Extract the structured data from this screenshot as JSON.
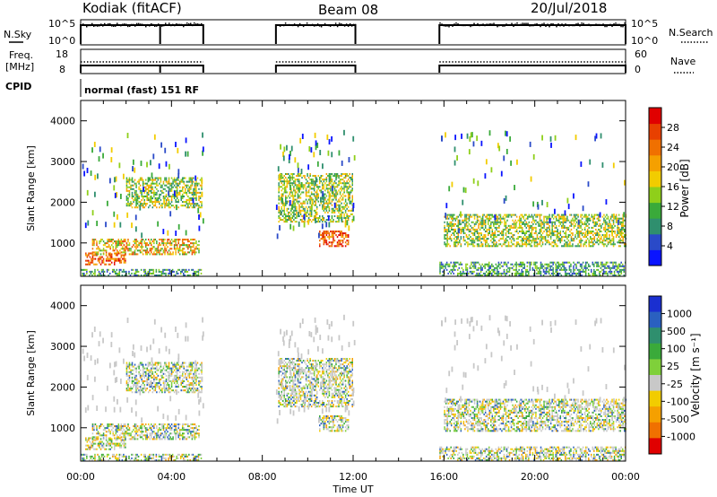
{
  "header": {
    "station": "Kodiak (fitACF)",
    "beam": "Beam 08",
    "date": "20/Jul/2018"
  },
  "info_panel": {
    "nsky_label": "N.Sky",
    "nsearch_label": "N.Search",
    "freq_label_1": "Freq.",
    "freq_label_2": "[MHz]",
    "nave_label": "Nave",
    "cpid_label": "CPID",
    "cpid_value": "normal (fast) 151 RF",
    "nsky_ticks": [
      "10^5",
      "10^0"
    ],
    "nsearch_ticks": [
      "10^5",
      "10^0"
    ],
    "freq_ticks": [
      "18",
      "8"
    ],
    "nave_ticks": [
      "60",
      "0"
    ]
  },
  "x_axis": {
    "label": "Time UT",
    "ticks": [
      "00:00",
      "04:00",
      "08:00",
      "12:00",
      "16:00",
      "20:00",
      "00:00"
    ],
    "range_hours": [
      0,
      24
    ]
  },
  "chart_data": [
    {
      "type": "heatmap",
      "title": "Power",
      "ylabel": "Slant Range [km]",
      "colorbar_label": "Power [dB]",
      "colorbar_ticks": [
        "4",
        "8",
        "12",
        "16",
        "20",
        "24",
        "28"
      ],
      "colorbar_colors": [
        "#0a14ff",
        "#2a4ac8",
        "#2f8f6e",
        "#3aaa3a",
        "#8fcf1a",
        "#f2cc00",
        "#f5a000",
        "#f07000",
        "#e84000",
        "#e00000"
      ],
      "ylim": [
        180,
        4500
      ],
      "yticks": [
        1000,
        2000,
        3000,
        4000
      ],
      "xlim": [
        0,
        24
      ],
      "data_periods_hours": [
        [
          0,
          5.4
        ],
        [
          8.6,
          12.1
        ],
        [
          15.8,
          24
        ]
      ],
      "features": [
        {
          "t0": 0.0,
          "t1": 5.3,
          "r0": 180,
          "r1": 350,
          "level": "low-mid"
        },
        {
          "t0": 0.2,
          "t1": 2.0,
          "r0": 450,
          "r1": 750,
          "level": "high"
        },
        {
          "t0": 0.5,
          "t1": 5.2,
          "r0": 700,
          "r1": 1100,
          "level": "mid-high"
        },
        {
          "t0": 2.0,
          "t1": 5.3,
          "r0": 1850,
          "r1": 2600,
          "level": "mid"
        },
        {
          "t0": 8.7,
          "t1": 12.0,
          "r0": 1500,
          "r1": 2700,
          "level": "mid"
        },
        {
          "t0": 10.5,
          "t1": 11.8,
          "r0": 900,
          "r1": 1300,
          "level": "high"
        },
        {
          "t0": 15.8,
          "t1": 24.0,
          "r0": 180,
          "r1": 500,
          "level": "low-mid"
        },
        {
          "t0": 16.0,
          "t1": 24.0,
          "r0": 900,
          "r1": 1700,
          "level": "mid"
        }
      ]
    },
    {
      "type": "heatmap",
      "title": "Velocity",
      "ylabel": "Slant Range [km]",
      "colorbar_label": "Velocity [m s⁻¹]",
      "colorbar_ticks": [
        "1000",
        "500",
        "100",
        "25",
        "-25",
        "-100",
        "-500",
        "-1000"
      ],
      "colorbar_colors": [
        "#1a2fd0",
        "#2a60c0",
        "#2f8f6e",
        "#3aaa3a",
        "#7fd03a",
        "#c8c8c8",
        "#f2cc00",
        "#f5a000",
        "#f07000",
        "#e00000"
      ],
      "ylim": [
        180,
        4500
      ],
      "yticks": [
        1000,
        2000,
        3000,
        4000
      ],
      "xlim": [
        0,
        24
      ],
      "data_periods_hours": [
        [
          0,
          5.4
        ],
        [
          8.6,
          12.1
        ],
        [
          15.8,
          24
        ]
      ]
    }
  ]
}
